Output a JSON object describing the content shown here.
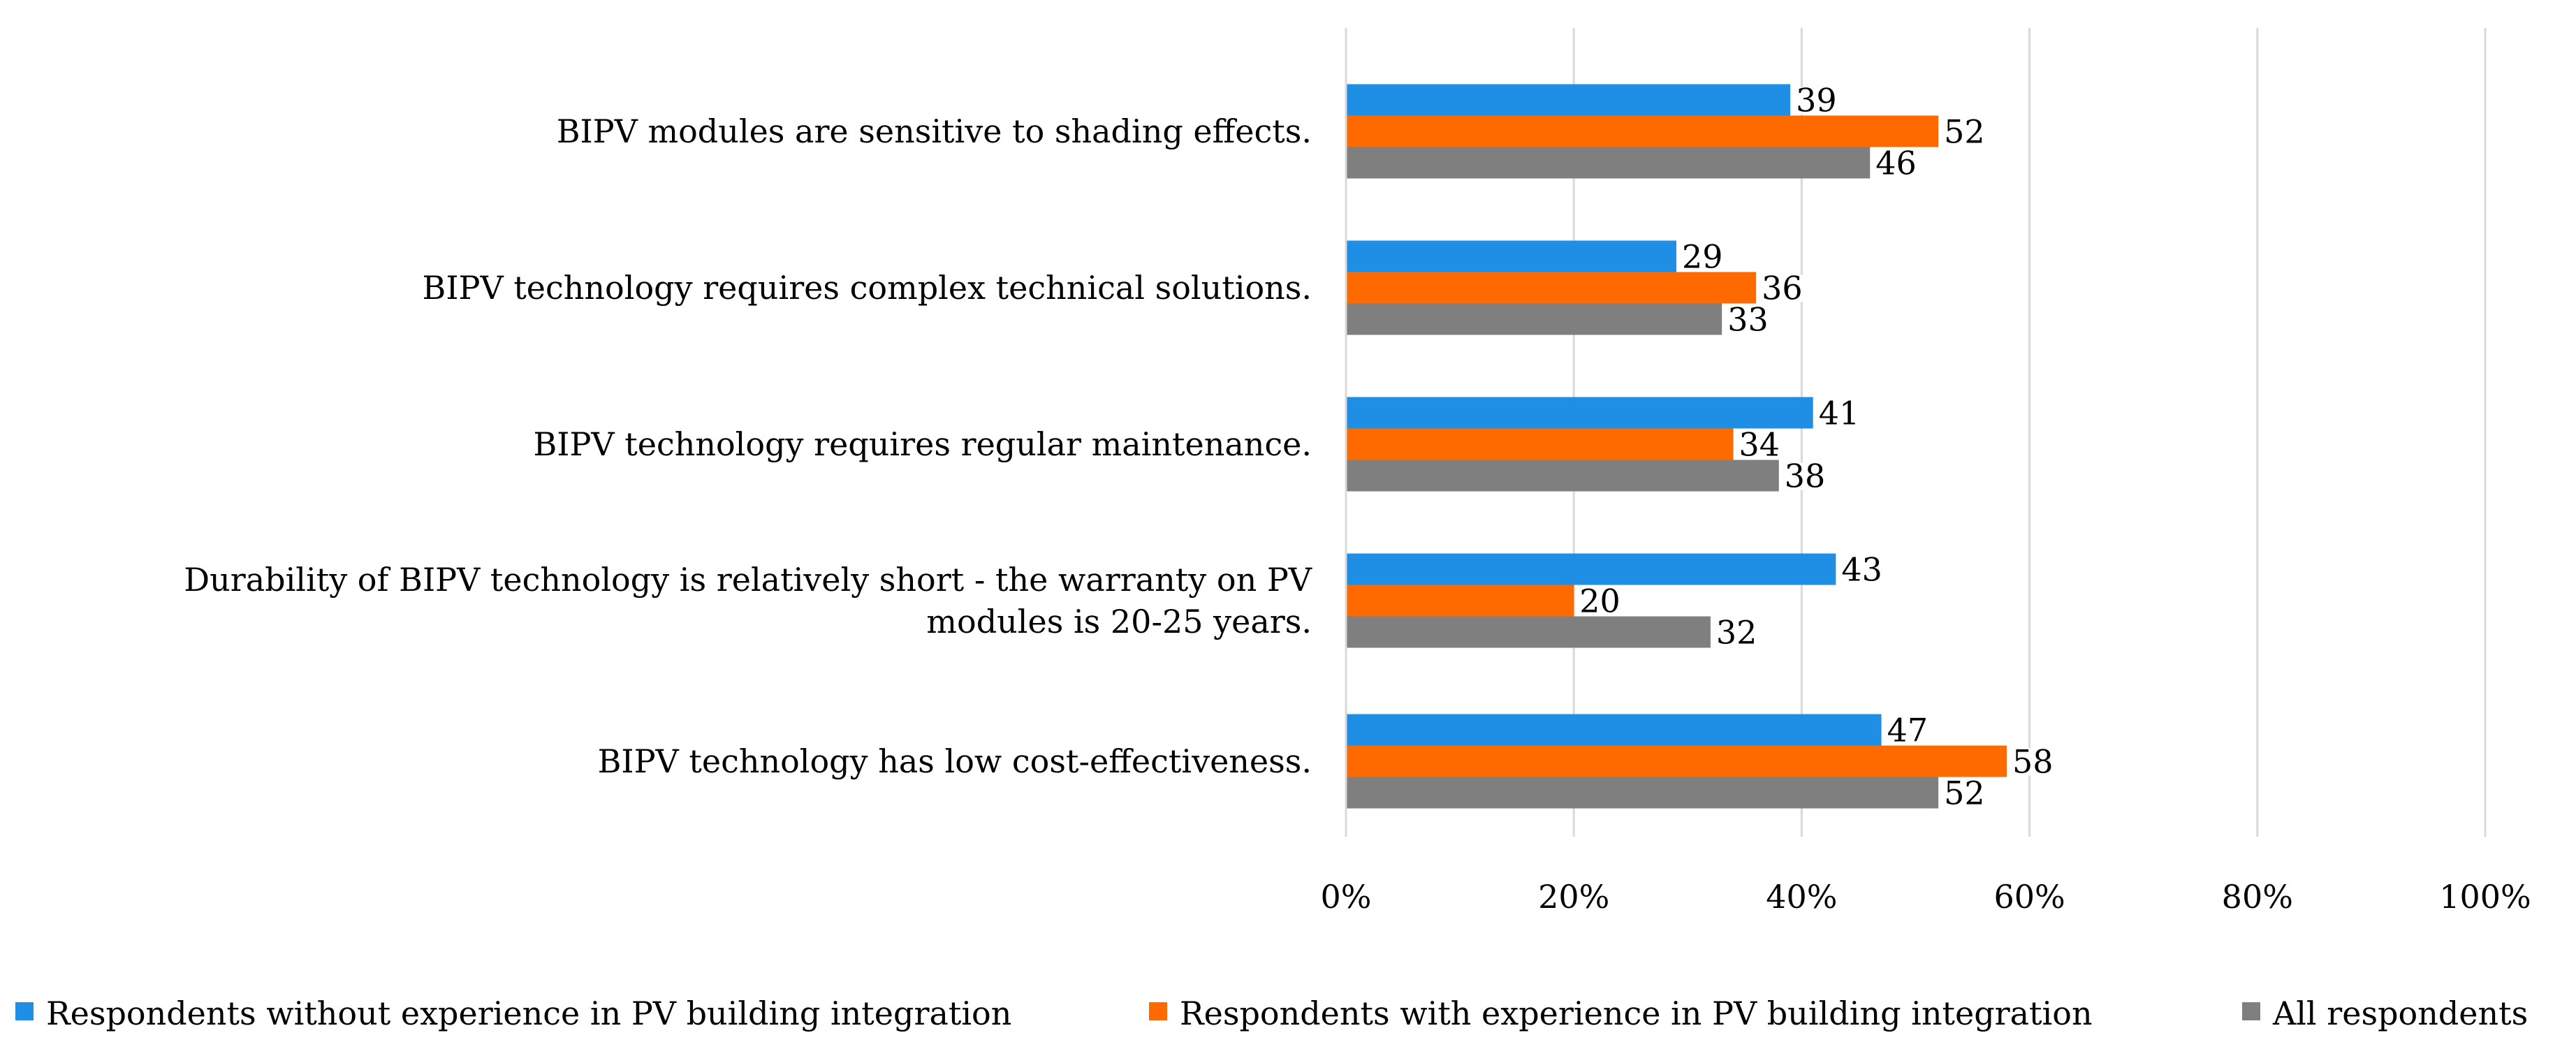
{
  "chart_data": {
    "type": "bar",
    "orientation": "horizontal",
    "categories": [
      [
        "BIPV modules are sensitive to shading effects."
      ],
      [
        "BIPV technology requires complex technical solutions."
      ],
      [
        "BIPV technology requires regular maintenance."
      ],
      [
        "Durability of BIPV technology is relatively short - the warranty on PV",
        "modules is 20-25 years."
      ],
      [
        "BIPV technology has low cost-effectiveness."
      ]
    ],
    "series": [
      {
        "name": "Respondents without experience in PV building integration",
        "color": "#1f8fe5",
        "values": [
          39,
          29,
          41,
          43,
          47
        ]
      },
      {
        "name": "Respondents with experience in PV building integration",
        "color": "#ff6a00",
        "values": [
          52,
          36,
          34,
          20,
          58
        ]
      },
      {
        "name": "All respondents",
        "color": "#7f7f7f",
        "values": [
          46,
          33,
          38,
          32,
          52
        ]
      }
    ],
    "xlim": [
      0,
      100
    ],
    "xticks": [
      0,
      20,
      40,
      60,
      80,
      100
    ],
    "xtick_labels": [
      "0%",
      "20%",
      "40%",
      "60%",
      "80%",
      "100%"
    ],
    "grid": true,
    "legend_position": "bottom",
    "title": "",
    "xlabel": "",
    "ylabel": ""
  }
}
